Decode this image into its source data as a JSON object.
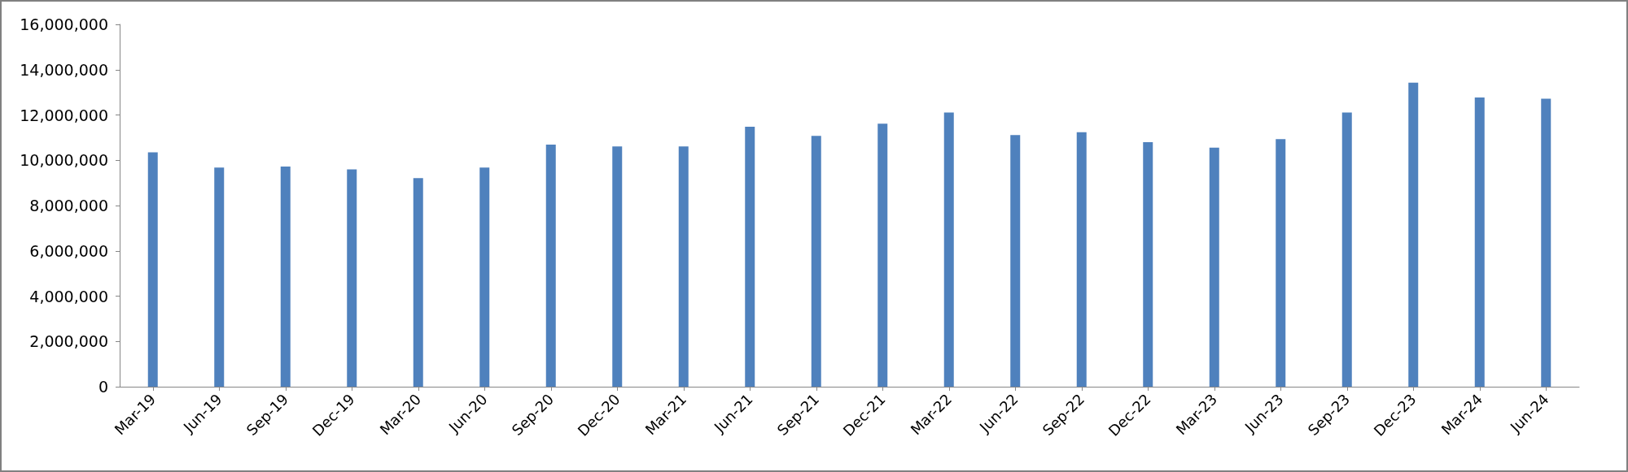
{
  "chart_data": {
    "type": "bar",
    "categories": [
      "Mar-19",
      "Jun-19",
      "Sep-19",
      "Dec-19",
      "Mar-20",
      "Jun-20",
      "Sep-20",
      "Dec-20",
      "Mar-21",
      "Jun-21",
      "Sep-21",
      "Dec-21",
      "Mar-22",
      "Jun-22",
      "Sep-22",
      "Dec-22",
      "Mar-23",
      "Jun-23",
      "Sep-23",
      "Dec-23",
      "Mar-24",
      "Jun-24"
    ],
    "values": [
      10350000,
      9680000,
      9720000,
      9600000,
      9210000,
      9680000,
      10690000,
      10610000,
      10610000,
      11480000,
      11080000,
      11610000,
      12110000,
      11110000,
      11240000,
      10800000,
      10560000,
      10930000,
      12110000,
      13430000,
      12770000,
      12720000
    ],
    "color": "#4f81bd",
    "ylim": [
      0,
      16000000
    ],
    "yticks": [
      0,
      {
        "value": 2000000,
        "label": "2,000,000"
      },
      {
        "value": 4000000,
        "label": "4,000,000"
      },
      {
        "value": 6000000,
        "label": "6,000,000"
      },
      {
        "value": 8000000,
        "label": "8,000,000"
      },
      {
        "value": 10000000,
        "label": "10,000,000"
      },
      {
        "value": 12000000,
        "label": "12,000,000"
      },
      {
        "value": 14000000,
        "label": "14,000,000"
      },
      {
        "value": 16000000,
        "label": "16,000,000"
      }
    ],
    "grid": false
  }
}
